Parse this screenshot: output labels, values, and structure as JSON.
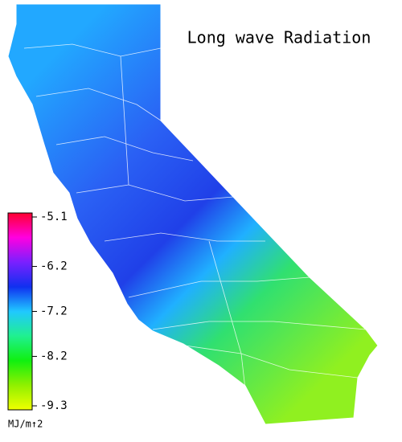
{
  "title": "Long wave Radiation",
  "legend": {
    "ticks": [
      -5.1,
      -6.2,
      -7.2,
      -8.2,
      -9.3
    ],
    "unit": "MJ/m↑2",
    "colors": [
      "#ff0030",
      "#ff00e0",
      "#7a20ff",
      "#1030f0",
      "#20c8ff",
      "#20f090",
      "#10f010",
      "#90f000",
      "#f0ff00"
    ]
  }
}
